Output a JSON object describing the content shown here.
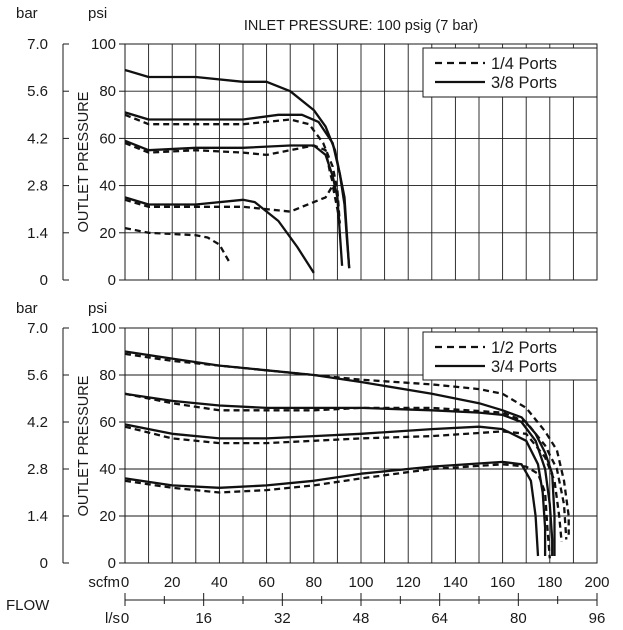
{
  "top_panel": {
    "title": "INLET PRESSURE: 100 psig (7 bar)",
    "bar_unit": "bar",
    "psi_unit": "psi",
    "ylabel": "OUTLET PRESSURE",
    "legend": [
      "1/4 Ports",
      "3/8 Ports"
    ]
  },
  "bottom_panel": {
    "bar_unit": "bar",
    "psi_unit": "psi",
    "ylabel": "OUTLET PRESSURE",
    "legend": [
      "1/2 Ports",
      "3/4 Ports"
    ]
  },
  "x_axis": {
    "flow_label": "FLOW",
    "scfm_unit": "scfm",
    "ls_unit": "l/s",
    "scfm_ticks": [
      "0",
      "20",
      "40",
      "60",
      "80",
      "100",
      "120",
      "140",
      "160",
      "180",
      "200"
    ],
    "ls_ticks": [
      "0",
      "16",
      "32",
      "48",
      "64",
      "80",
      "96"
    ]
  },
  "chart_data": [
    {
      "type": "line",
      "title": "INLET PRESSURE: 100 psig (7 bar)",
      "xlabel": "FLOW (scfm / l/s)",
      "ylabel": "OUTLET PRESSURE",
      "xlim": [
        0,
        200
      ],
      "ylim": [
        0,
        100
      ],
      "y_ticks_psi": [
        "0",
        "20",
        "40",
        "60",
        "80",
        "100"
      ],
      "y_ticks_bar": [
        "0",
        "1.4",
        "2.8",
        "4.2",
        "5.6",
        "7.0"
      ],
      "grid": true,
      "legend_position": "top-right",
      "series": [
        {
          "name": "1/4 Ports",
          "style": "dashed",
          "points": [
            [
              0,
              22
            ],
            [
              10,
              20
            ],
            [
              30,
              19
            ],
            [
              35,
              18
            ],
            [
              40,
              15
            ],
            [
              44,
              8
            ]
          ]
        },
        {
          "name": "1/4 Ports",
          "style": "dashed",
          "points": [
            [
              0,
              34
            ],
            [
              10,
              31
            ],
            [
              30,
              31
            ],
            [
              50,
              31
            ],
            [
              70,
              29
            ],
            [
              75,
              31
            ],
            [
              85,
              35
            ],
            [
              88,
              40
            ],
            [
              90,
              30
            ],
            [
              91,
              24
            ]
          ]
        },
        {
          "name": "1/4 Ports",
          "style": "dashed",
          "points": [
            [
              0,
              58
            ],
            [
              10,
              54
            ],
            [
              30,
              55
            ],
            [
              50,
              54
            ],
            [
              60,
              53
            ],
            [
              70,
              55
            ],
            [
              80,
              57
            ],
            [
              85,
              55
            ],
            [
              87,
              45
            ],
            [
              89,
              38
            ]
          ]
        },
        {
          "name": "1/4 Ports",
          "style": "dashed",
          "points": [
            [
              0,
              70
            ],
            [
              10,
              66
            ],
            [
              30,
              66
            ],
            [
              50,
              66
            ],
            [
              60,
              67
            ],
            [
              70,
              68
            ],
            [
              78,
              66
            ],
            [
              84,
              58
            ],
            [
              88,
              48
            ],
            [
              90,
              38
            ],
            [
              91,
              24
            ]
          ]
        },
        {
          "name": "3/8 Ports",
          "style": "solid",
          "points": [
            [
              0,
              35
            ],
            [
              10,
              32
            ],
            [
              30,
              32
            ],
            [
              50,
              34
            ],
            [
              55,
              33
            ],
            [
              65,
              25
            ],
            [
              73,
              14
            ],
            [
              80,
              3
            ]
          ]
        },
        {
          "name": "3/8 Ports",
          "style": "solid",
          "points": [
            [
              0,
              59
            ],
            [
              10,
              55
            ],
            [
              30,
              56
            ],
            [
              50,
              56
            ],
            [
              70,
              57
            ],
            [
              80,
              57
            ],
            [
              85,
              53
            ],
            [
              88,
              44
            ],
            [
              90,
              35
            ],
            [
              91,
              20
            ],
            [
              92,
              6
            ]
          ]
        },
        {
          "name": "3/8 Ports",
          "style": "solid",
          "points": [
            [
              0,
              71
            ],
            [
              10,
              68
            ],
            [
              30,
              68
            ],
            [
              50,
              68
            ],
            [
              65,
              70
            ],
            [
              75,
              70
            ],
            [
              82,
              67
            ],
            [
              88,
              58
            ],
            [
              91,
              45
            ],
            [
              93,
              35
            ],
            [
              94,
              20
            ],
            [
              95,
              5
            ]
          ]
        },
        {
          "name": "3/8 Ports",
          "style": "solid",
          "points": [
            [
              0,
              89
            ],
            [
              10,
              86
            ],
            [
              30,
              86
            ],
            [
              50,
              84
            ],
            [
              60,
              84
            ],
            [
              70,
              80
            ],
            [
              80,
              72
            ],
            [
              85,
              65
            ],
            [
              89,
              55
            ],
            [
              91,
              45
            ],
            [
              93,
              32
            ],
            [
              94,
              18
            ],
            [
              95,
              5
            ]
          ]
        }
      ]
    },
    {
      "type": "line",
      "xlabel": "FLOW (scfm / l/s)",
      "ylabel": "OUTLET PRESSURE",
      "xlim": [
        0,
        200
      ],
      "ylim": [
        0,
        100
      ],
      "y_ticks_psi": [
        "0",
        "20",
        "40",
        "60",
        "80",
        "100"
      ],
      "y_ticks_bar": [
        "0",
        "1.4",
        "2.8",
        "4.2",
        "5.6",
        "7.0"
      ],
      "grid": true,
      "legend_position": "top-right",
      "series": [
        {
          "name": "1/2 Ports",
          "style": "dashed",
          "points": [
            [
              0,
              35
            ],
            [
              20,
              32
            ],
            [
              40,
              30
            ],
            [
              60,
              31
            ],
            [
              80,
              33
            ],
            [
              100,
              36
            ],
            [
              130,
              40
            ],
            [
              160,
              42
            ],
            [
              170,
              41
            ],
            [
              175,
              38
            ],
            [
              178,
              30
            ],
            [
              179,
              15
            ],
            [
              180,
              2
            ]
          ]
        },
        {
          "name": "1/2 Ports",
          "style": "dashed",
          "points": [
            [
              0,
              58
            ],
            [
              20,
              53
            ],
            [
              40,
              51
            ],
            [
              60,
              51
            ],
            [
              80,
              52
            ],
            [
              100,
              53
            ],
            [
              130,
              54
            ],
            [
              160,
              56
            ],
            [
              170,
              55
            ],
            [
              178,
              45
            ],
            [
              182,
              35
            ],
            [
              184,
              20
            ],
            [
              185,
              9
            ]
          ]
        },
        {
          "name": "1/2 Ports",
          "style": "dashed",
          "points": [
            [
              0,
              72
            ],
            [
              20,
              68
            ],
            [
              40,
              65
            ],
            [
              60,
              65
            ],
            [
              80,
              65
            ],
            [
              100,
              66
            ],
            [
              130,
              66
            ],
            [
              160,
              64
            ],
            [
              170,
              60
            ],
            [
              178,
              50
            ],
            [
              183,
              40
            ],
            [
              186,
              25
            ],
            [
              187,
              10
            ]
          ]
        },
        {
          "name": "1/2 Ports",
          "style": "dashed",
          "points": [
            [
              0,
              89
            ],
            [
              20,
              86
            ],
            [
              40,
              84
            ],
            [
              60,
              82
            ],
            [
              80,
              80
            ],
            [
              100,
              78
            ],
            [
              130,
              76
            ],
            [
              150,
              74
            ],
            [
              160,
              72
            ],
            [
              170,
              66
            ],
            [
              178,
              56
            ],
            [
              183,
              48
            ],
            [
              186,
              35
            ],
            [
              188,
              20
            ],
            [
              188,
              12
            ]
          ]
        },
        {
          "name": "3/4 Ports",
          "style": "solid",
          "points": [
            [
              0,
              36
            ],
            [
              20,
              33
            ],
            [
              40,
              32
            ],
            [
              60,
              33
            ],
            [
              80,
              35
            ],
            [
              100,
              38
            ],
            [
              130,
              41
            ],
            [
              160,
              43
            ],
            [
              168,
              42
            ],
            [
              172,
              35
            ],
            [
              174,
              20
            ],
            [
              175,
              3
            ]
          ]
        },
        {
          "name": "3/4 Ports",
          "style": "solid",
          "points": [
            [
              0,
              59
            ],
            [
              20,
              55
            ],
            [
              40,
              53
            ],
            [
              60,
              53
            ],
            [
              80,
              54
            ],
            [
              100,
              55
            ],
            [
              130,
              57
            ],
            [
              150,
              58
            ],
            [
              160,
              57
            ],
            [
              170,
              52
            ],
            [
              175,
              42
            ],
            [
              177,
              30
            ],
            [
              178,
              15
            ],
            [
              178,
              3
            ]
          ]
        },
        {
          "name": "3/4 Ports",
          "style": "solid",
          "points": [
            [
              0,
              72
            ],
            [
              20,
              69
            ],
            [
              40,
              67
            ],
            [
              60,
              66
            ],
            [
              80,
              66
            ],
            [
              100,
              66
            ],
            [
              130,
              65
            ],
            [
              150,
              64
            ],
            [
              160,
              63
            ],
            [
              168,
              60
            ],
            [
              174,
              52
            ],
            [
              178,
              40
            ],
            [
              180,
              25
            ],
            [
              181,
              10
            ],
            [
              181,
              3
            ]
          ]
        },
        {
          "name": "3/4 Ports",
          "style": "solid",
          "points": [
            [
              0,
              90
            ],
            [
              20,
              87
            ],
            [
              40,
              84
            ],
            [
              60,
              82
            ],
            [
              80,
              80
            ],
            [
              100,
              77
            ],
            [
              130,
              72
            ],
            [
              150,
              68
            ],
            [
              160,
              65
            ],
            [
              168,
              62
            ],
            [
              174,
              55
            ],
            [
              178,
              47
            ],
            [
              181,
              38
            ],
            [
              182,
              20
            ],
            [
              182,
              3
            ]
          ]
        }
      ]
    }
  ]
}
